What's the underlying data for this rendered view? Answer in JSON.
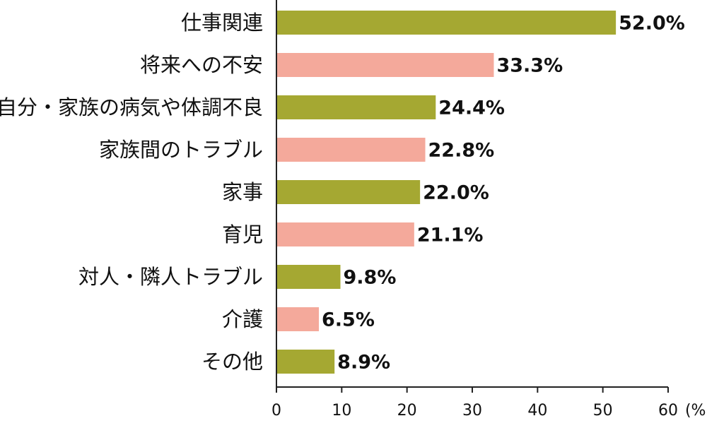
{
  "chart_data": {
    "type": "barh",
    "categories": [
      "仕事関連",
      "将来への不安",
      "自分・家族の病気や体調不良",
      "家族間のトラブル",
      "家事",
      "育児",
      "対人・隣人トラブル",
      "介護",
      "その他"
    ],
    "values": [
      52.0,
      33.3,
      24.4,
      22.8,
      22.0,
      21.1,
      9.8,
      6.5,
      8.9
    ],
    "value_labels": [
      "52.0%",
      "33.3%",
      "24.4%",
      "22.8%",
      "22.0%",
      "21.1%",
      "9.8%",
      "6.5%",
      "8.9%"
    ],
    "colors": [
      "#a5a832",
      "#f4a99b",
      "#a5a832",
      "#f4a99b",
      "#a5a832",
      "#f4a99b",
      "#a5a832",
      "#f4a99b",
      "#a5a832"
    ],
    "xlim": [
      0,
      60
    ],
    "xticks": [
      0,
      10,
      20,
      30,
      40,
      50,
      60
    ],
    "x_axis_label": "(%)",
    "grid": false
  }
}
